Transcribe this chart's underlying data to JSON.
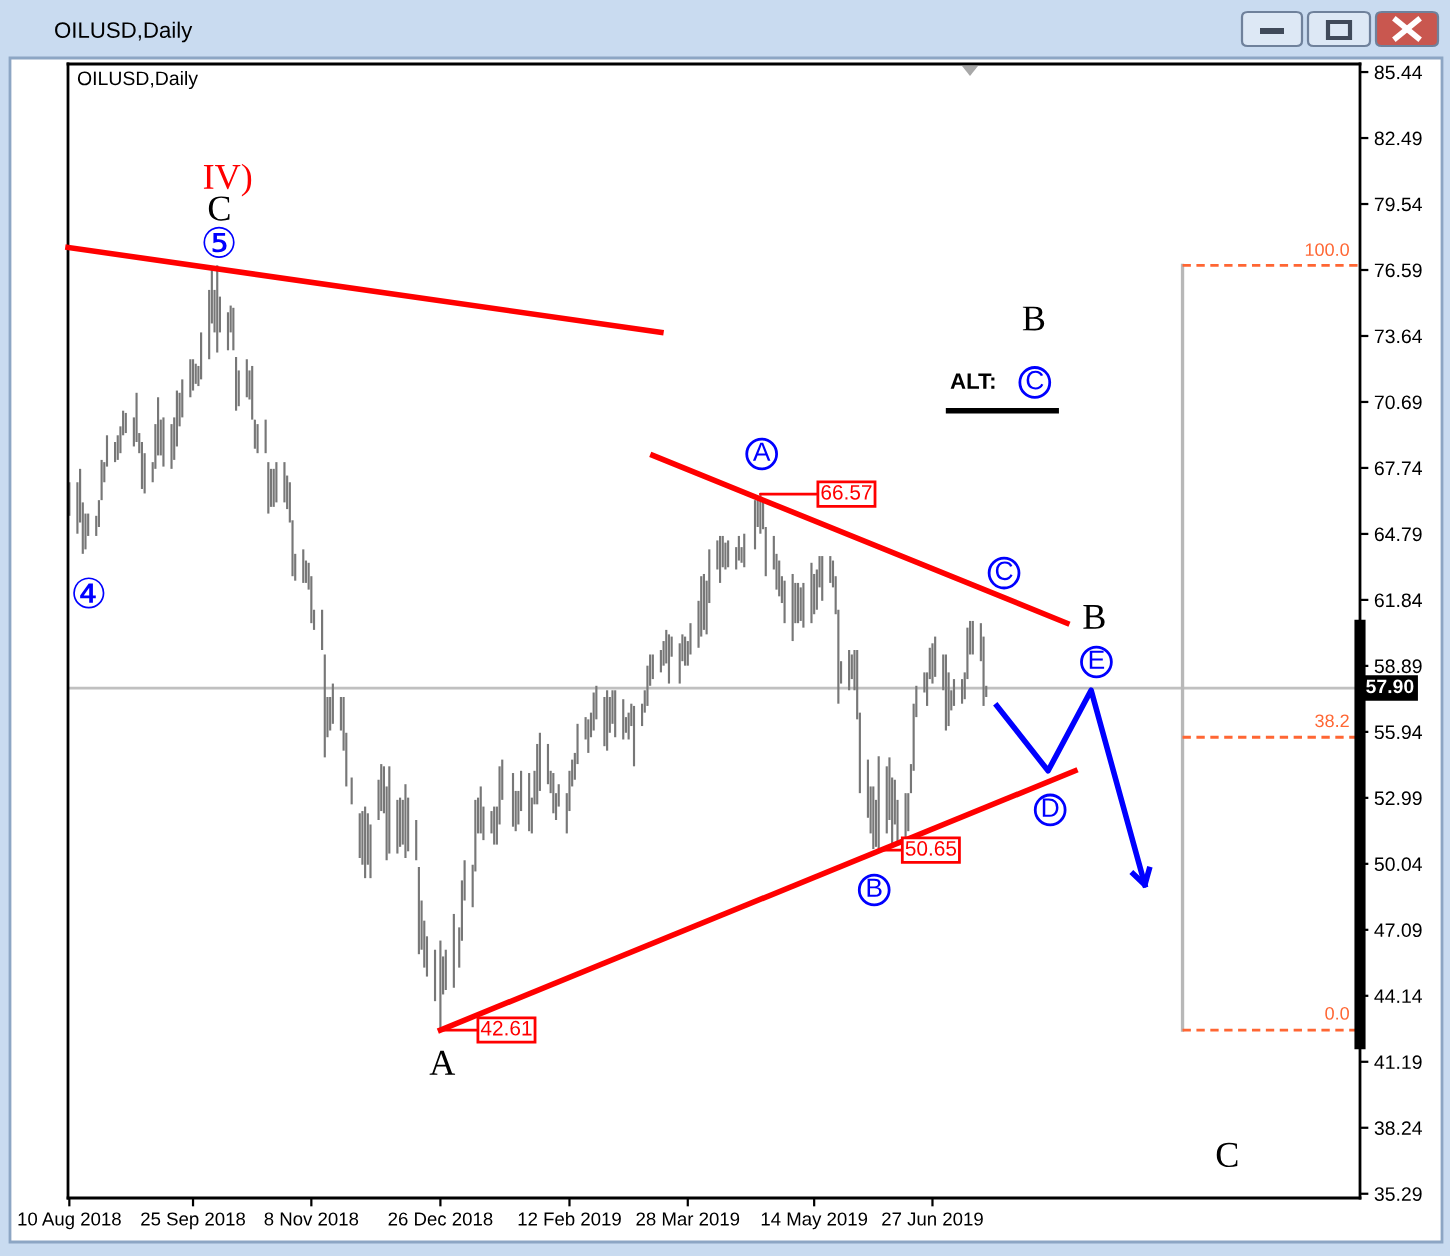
{
  "chart_data": {
    "type": "bar",
    "title": "OILUSD,Daily",
    "subtitle": "OILUSD,Daily",
    "series": [
      {
        "color": "#777777",
        "x": [
          "2018-08-10",
          "2018-08-13",
          "2018-08-14",
          "2018-08-15",
          "2018-08-16",
          "2018-08-17",
          "2018-08-20",
          "2018-08-21",
          "2018-08-22",
          "2018-08-23",
          "2018-08-24",
          "2018-08-27",
          "2018-08-28",
          "2018-08-29",
          "2018-08-30",
          "2018-08-31",
          "2018-09-03",
          "2018-09-04",
          "2018-09-05",
          "2018-09-06",
          "2018-09-07",
          "2018-09-10",
          "2018-09-11",
          "2018-09-12",
          "2018-09-13",
          "2018-09-14",
          "2018-09-17",
          "2018-09-18",
          "2018-09-19",
          "2018-09-20",
          "2018-09-21",
          "2018-09-24",
          "2018-09-25",
          "2018-09-26",
          "2018-09-27",
          "2018-09-28",
          "2018-10-01",
          "2018-10-02",
          "2018-10-03",
          "2018-10-04",
          "2018-10-05",
          "2018-10-08",
          "2018-10-09",
          "2018-10-10",
          "2018-10-11",
          "2018-10-12",
          "2018-10-15",
          "2018-10-16",
          "2018-10-17",
          "2018-10-18",
          "2018-10-19",
          "2018-10-22",
          "2018-10-23",
          "2018-10-24",
          "2018-10-25",
          "2018-10-26",
          "2018-10-29",
          "2018-10-30",
          "2018-10-31",
          "2018-11-01",
          "2018-11-02",
          "2018-11-05",
          "2018-11-06",
          "2018-11-07",
          "2018-11-08",
          "2018-11-09",
          "2018-11-12",
          "2018-11-13",
          "2018-11-14",
          "2018-11-15",
          "2018-11-16",
          "2018-11-19",
          "2018-11-20",
          "2018-11-21",
          "2018-11-23",
          "2018-11-26",
          "2018-11-27",
          "2018-11-28",
          "2018-11-29",
          "2018-11-30",
          "2018-12-03",
          "2018-12-04",
          "2018-12-05",
          "2018-12-06",
          "2018-12-07",
          "2018-12-10",
          "2018-12-11",
          "2018-12-12",
          "2018-12-13",
          "2018-12-14",
          "2018-12-17",
          "2018-12-18",
          "2018-12-19",
          "2018-12-20",
          "2018-12-21",
          "2018-12-24",
          "2018-12-26",
          "2018-12-27",
          "2018-12-28",
          "2018-12-31",
          "2019-01-02",
          "2019-01-03",
          "2019-01-04",
          "2019-01-07",
          "2019-01-08",
          "2019-01-09",
          "2019-01-10",
          "2019-01-11",
          "2019-01-14",
          "2019-01-15",
          "2019-01-16",
          "2019-01-17",
          "2019-01-18",
          "2019-01-22",
          "2019-01-23",
          "2019-01-24",
          "2019-01-25",
          "2019-01-28",
          "2019-01-29",
          "2019-01-30",
          "2019-01-31",
          "2019-02-01",
          "2019-02-04",
          "2019-02-05",
          "2019-02-06",
          "2019-02-07",
          "2019-02-08",
          "2019-02-11",
          "2019-02-12",
          "2019-02-13",
          "2019-02-14",
          "2019-02-15",
          "2019-02-18",
          "2019-02-19",
          "2019-02-20",
          "2019-02-21",
          "2019-02-22",
          "2019-02-25",
          "2019-02-26",
          "2019-02-27",
          "2019-02-28",
          "2019-03-01",
          "2019-03-04",
          "2019-03-05",
          "2019-03-06",
          "2019-03-07",
          "2019-03-08",
          "2019-03-11",
          "2019-03-12",
          "2019-03-13",
          "2019-03-14",
          "2019-03-15",
          "2019-03-18",
          "2019-03-19",
          "2019-03-20",
          "2019-03-21",
          "2019-03-22",
          "2019-03-25",
          "2019-03-26",
          "2019-03-27",
          "2019-03-28",
          "2019-03-29",
          "2019-04-01",
          "2019-04-02",
          "2019-04-03",
          "2019-04-04",
          "2019-04-05",
          "2019-04-08",
          "2019-04-09",
          "2019-04-10",
          "2019-04-11",
          "2019-04-12",
          "2019-04-15",
          "2019-04-16",
          "2019-04-17",
          "2019-04-18",
          "2019-04-22",
          "2019-04-23",
          "2019-04-24",
          "2019-04-25",
          "2019-04-26",
          "2019-04-29",
          "2019-04-30",
          "2019-05-01",
          "2019-05-02",
          "2019-05-03",
          "2019-05-06",
          "2019-05-07",
          "2019-05-08",
          "2019-05-09",
          "2019-05-10",
          "2019-05-13",
          "2019-05-14",
          "2019-05-15",
          "2019-05-16",
          "2019-05-17",
          "2019-05-20",
          "2019-05-21",
          "2019-05-22",
          "2019-05-23",
          "2019-05-24",
          "2019-05-27",
          "2019-05-28",
          "2019-05-29",
          "2019-05-30",
          "2019-05-31",
          "2019-06-03",
          "2019-06-04",
          "2019-06-05",
          "2019-06-06",
          "2019-06-07",
          "2019-06-10",
          "2019-06-11",
          "2019-06-12",
          "2019-06-13",
          "2019-06-14",
          "2019-06-17",
          "2019-06-18",
          "2019-06-19",
          "2019-06-20",
          "2019-06-21",
          "2019-06-24",
          "2019-06-25",
          "2019-06-26",
          "2019-06-27",
          "2019-06-28",
          "2019-07-01",
          "2019-07-02",
          "2019-07-03",
          "2019-07-04",
          "2019-07-05",
          "2019-07-08",
          "2019-07-09",
          "2019-07-10",
          "2019-07-11",
          "2019-07-12",
          "2019-07-15",
          "2019-07-16",
          "2019-07-17"
        ],
        "base": [
          65.6,
          64.8,
          65.3,
          63.9,
          64.1,
          64.7,
          64.7,
          65.1,
          66.3,
          67.1,
          67.8,
          68.0,
          68.1,
          68.4,
          69.2,
          69.3,
          68.7,
          68.9,
          68.4,
          66.8,
          66.6,
          67.1,
          67.7,
          68.3,
          68.3,
          67.8,
          67.7,
          68.1,
          68.7,
          69.6,
          70.0,
          70.9,
          71.2,
          71.5,
          71.4,
          71.7,
          72.6,
          74.2,
          73.8,
          72.9,
          73.8,
          73.0,
          73.8,
          73.0,
          70.3,
          70.5,
          70.9,
          70.8,
          69.9,
          68.6,
          68.4,
          68.4,
          65.7,
          66.0,
          66.0,
          66.2,
          66.2,
          65.9,
          65.3,
          62.9,
          62.7,
          62.6,
          62.6,
          62.3,
          60.8,
          60.5,
          59.6,
          54.8,
          55.7,
          56.0,
          56.3,
          56.0,
          55.1,
          53.5,
          52.7,
          50.3,
          50.0,
          49.4,
          50.0,
          49.4,
          52.0,
          52.4,
          52.3,
          50.2,
          50.5,
          50.5,
          50.8,
          50.9,
          50.3,
          50.6,
          50.2,
          46.0,
          46.2,
          45.4,
          45.0,
          43.9,
          42.61,
          44.2,
          44.4,
          44.5,
          45.4,
          46.6,
          48.4,
          48.1,
          49.7,
          51.4,
          51.4,
          51.1,
          51.4,
          50.9,
          50.9,
          51.8,
          52.9,
          51.7,
          51.5,
          51.8,
          52.4,
          51.5,
          51.4,
          52.7,
          52.7,
          53.3,
          53.6,
          53.2,
          52.3,
          52.0,
          52.6,
          51.4,
          52.4,
          53.5,
          53.8,
          54.5,
          55.6,
          55.0,
          55.7,
          56.0,
          56.5,
          55.3,
          55.1,
          55.9,
          56.3,
          55.7,
          55.6,
          55.9,
          55.6,
          56.2,
          54.4,
          56.2,
          56.8,
          57.1,
          58.0,
          58.3,
          58.6,
          58.9,
          59.0,
          58.1,
          59.3,
          58.1,
          59.1,
          58.9,
          58.9,
          59.4,
          59.7,
          60.2,
          60.5,
          60.3,
          61.7,
          63.2,
          62.6,
          63.3,
          63.2,
          63.3,
          63.2,
          63.6,
          63.5,
          63.3,
          64.1,
          65.1,
          64.8,
          65.0,
          62.9,
          63.2,
          62.3,
          62.0,
          61.7,
          60.8,
          60.0,
          60.8,
          60.8,
          60.9,
          60.6,
          60.8,
          61.2,
          61.4,
          62.4,
          61.8,
          62.6,
          62.4,
          61.2,
          57.2,
          58.1,
          57.8,
          58.3,
          57.8,
          56.5,
          53.2,
          52.1,
          51.4,
          50.7,
          50.8,
          50.65,
          51.4,
          52.0,
          50.9,
          51.8,
          50.9,
          50.8,
          51.5,
          53.2,
          54.2,
          56.6,
          57.7,
          57.1,
          58.3,
          58.1,
          58.4,
          57.8,
          56.0,
          56.2,
          56.9,
          57.1,
          57.2,
          57.4,
          58.3,
          59.4,
          59.4,
          59.1,
          57.1,
          57.5
        ],
        "values": [
          1.5,
          2.3,
          2.4,
          2.3,
          1.6,
          1.0,
          0.9,
          1.2,
          1.8,
          0.9,
          1.4,
          0.9,
          1.1,
          1.2,
          1.1,
          0.9,
          1.3,
          2.2,
          0.9,
          2.1,
          1.8,
          0.9,
          2.0,
          2.6,
          1.6,
          2.2,
          2.0,
          1.9,
          2.5,
          1.5,
          1.7,
          1.7,
          1.4,
          0.9,
          0.9,
          2.1,
          3.1,
          2.4,
          1.9,
          3.9,
          1.6,
          1.7,
          1.2,
          1.9,
          2.4,
          1.6,
          1.7,
          1.3,
          2.4,
          1.3,
          1.3,
          1.5,
          2.3,
          1.7,
          1.7,
          1.8,
          1.8,
          1.5,
          1.8,
          2.5,
          1.2,
          1.5,
          1.0,
          1.2,
          2.1,
          0.9,
          1.8,
          4.6,
          1.8,
          1.5,
          1.8,
          1.5,
          2.4,
          2.4,
          1.2,
          2.0,
          2.4,
          3.2,
          2.3,
          2.4,
          1.8,
          2.1,
          2.1,
          3.3,
          3.9,
          2.4,
          2.2,
          2.0,
          3.3,
          2.4,
          1.8,
          3.9,
          2.2,
          2.1,
          1.8,
          2.3,
          4.0,
          1.7,
          1.8,
          3.3,
          1.8,
          2.7,
          1.8,
          1.9,
          3.2,
          1.6,
          2.1,
          1.5,
          1.0,
          1.7,
          1.7,
          2.6,
          1.8,
          2.4,
          1.8,
          1.5,
          1.8,
          2.6,
          1.6,
          1.5,
          2.7,
          2.6,
          1.8,
          1.0,
          1.8,
          1.2,
          1.0,
          1.8,
          1.8,
          1.2,
          1.2,
          1.8,
          1.0,
          1.5,
          1.1,
          1.7,
          1.5,
          2.2,
          2.7,
          1.6,
          1.5,
          2.1,
          1.8,
          0.7,
          1.2,
          1.0,
          2.7,
          1.0,
          1.0,
          1.8,
          1.4,
          1.1,
          1.0,
          1.1,
          1.5,
          2.2,
          0.9,
          1.8,
          1.2,
          1.3,
          1.1,
          1.4,
          2.1,
          2.7,
          2.5,
          2.4,
          2.4,
          1.3,
          2.1,
          1.4,
          1.2,
          1.2,
          1.0,
          1.1,
          0.7,
          1.5,
          2.2,
          1.4,
          1.77,
          1.3,
          2.2,
          1.5,
          1.6,
          1.6,
          1.2,
          1.9,
          3.0,
          1.8,
          1.8,
          1.5,
          2.0,
          2.7,
          1.8,
          1.8,
          1.4,
          2.0,
          1.2,
          1.2,
          1.7,
          4.2,
          1.0,
          1.8,
          1.1,
          1.8,
          3.1,
          3.6,
          2.6,
          2.1,
          2.8,
          2.1,
          4.2,
          3.0,
          2.8,
          3.0,
          2.0,
          2.0,
          2.4,
          1.7,
          1.3,
          3.0,
          1.4,
          0.9,
          1.5,
          1.4,
          1.8,
          1.8,
          1.6,
          3.4,
          2.4,
          0.9,
          1.2,
          1.1,
          1.2,
          2.3,
          1.5,
          1.5,
          1.7,
          3.1,
          0.5
        ]
      },
      {
        "type": "line",
        "color": "#ff0000",
        "x": [
          "2018-08-09T12:00",
          "2019-03-18"
        ],
        "values": [
          77.6,
          73.8
        ]
      },
      {
        "type": "line",
        "color": "#ff0000",
        "x": [
          "2019-03-15",
          "2019-08-16"
        ],
        "values": [
          68.3,
          60.8
        ]
      },
      {
        "type": "line",
        "color": "#ff0000",
        "x": [
          "2018-12-26",
          "2019-08-19"
        ],
        "values": [
          42.61,
          54.2
        ]
      },
      {
        "type": "line",
        "color": "#0000ff",
        "x": [
          "2019-07-21",
          "2019-08-09",
          "2019-08-25",
          "2019-09-14"
        ],
        "values": [
          57.1,
          54.2,
          57.8,
          49.1
        ]
      },
      {
        "type": "line",
        "color": "#000000",
        "x": [
          "2019-07-03",
          "2019-08-12"
        ],
        "values": [
          70.3,
          70.3
        ]
      },
      {
        "type": "line",
        "color": "#b8b8b8",
        "x": [
          "2019-09-28",
          "2019-09-28"
        ],
        "values": [
          76.8,
          42.61
        ]
      },
      {
        "type": "line",
        "color": "#ff6633",
        "line_style": "dashed",
        "x": [
          "2019-09-28",
          "2019-12-03"
        ],
        "values": [
          76.8,
          76.8
        ]
      },
      {
        "type": "line",
        "color": "#ff6633",
        "line_style": "dashed",
        "x": [
          "2019-09-28",
          "2019-12-03"
        ],
        "values": [
          55.7,
          55.7
        ]
      },
      {
        "type": "line",
        "color": "#ff6633",
        "line_style": "dashed",
        "x": [
          "2019-09-28",
          "2019-12-03"
        ],
        "values": [
          42.61,
          42.61
        ]
      },
      {
        "type": "line",
        "color": "#000000",
        "x": [
          "2019-12-03",
          "2019-12-03"
        ],
        "values": [
          60.7,
          42.0
        ]
      }
    ],
    "xlim": [
      "2018-08-09T12:00",
      "2019-12-03"
    ],
    "xticks": [
      {
        "value": "2018-08-10",
        "label": "10 Aug 2018"
      },
      {
        "value": "2018-09-25",
        "label": "25 Sep 2018"
      },
      {
        "value": "2018-11-08",
        "label": "8 Nov 2018"
      },
      {
        "value": "2018-12-26",
        "label": "26 Dec 2018"
      },
      {
        "value": "2019-02-12",
        "label": "12 Feb 2019"
      },
      {
        "value": "2019-03-28",
        "label": "28 Mar 2019"
      },
      {
        "value": "2019-05-14",
        "label": "14 May 2019"
      },
      {
        "value": "2019-06-27",
        "label": "27 Jun 2019"
      }
    ],
    "ylim": [
      35.1,
      85.8
    ],
    "yticks": [
      85.44,
      82.49,
      79.54,
      76.59,
      73.64,
      70.69,
      67.74,
      64.79,
      61.84,
      58.89,
      55.94,
      52.99,
      50.04,
      47.09,
      44.14,
      41.19,
      38.24,
      35.29
    ],
    "ref_lines": [
      {
        "axis": "y",
        "value": 57.9,
        "label": "57.90",
        "color": "#c0c0c0"
      }
    ],
    "annotations": [
      "IV)",
      "C",
      "⑤",
      "④",
      "A",
      {
        "text": "42.61",
        "x": "2018-12-26",
        "y": 42.61
      },
      "A",
      {
        "text": "66.57",
        "x": "2019-04-24",
        "y": 66.57
      },
      "B",
      {
        "text": "50.65",
        "x": "2019-06-07",
        "y": 50.65
      },
      "C",
      "B",
      "E",
      "D",
      "B",
      "ALT:",
      "C",
      "C",
      "100.0",
      "38.2",
      "0.0"
    ]
  }
}
